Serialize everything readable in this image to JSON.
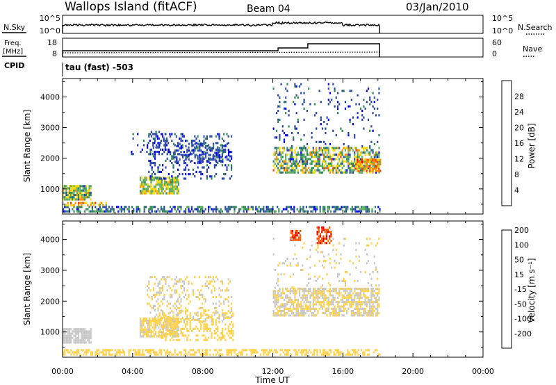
{
  "header": {
    "station": "Wallops Island (fitACF)",
    "beam": "Beam 04",
    "date": "03/Jan/2010"
  },
  "control_panels": {
    "nsky": {
      "label": "N.Sky",
      "ticks": [
        "10^5",
        "10^0"
      ],
      "right_ticks": [
        "10^5",
        "10^0"
      ],
      "right_label": "N.Search"
    },
    "freq": {
      "label_lines": [
        "Freq.",
        "[MHz]"
      ],
      "ticks": [
        "18",
        "8"
      ],
      "right_ticks": [
        "60",
        "0"
      ],
      "right_label": "Nave"
    },
    "cpid": {
      "label": "CPID",
      "value": "tau (fast) -503"
    }
  },
  "time_axis": {
    "label": "Time UT",
    "ticks": [
      "00:00",
      "04:00",
      "08:00",
      "12:00",
      "16:00",
      "20:00",
      "00:00"
    ]
  },
  "colors": {
    "power": [
      "#0000ff",
      "#2d4ba6",
      "#2e8b57",
      "#5fae5f",
      "#ffd700",
      "#ff8c00",
      "#ff3b00",
      "#ee0000"
    ],
    "velocity": [
      "#ee0000",
      "#ff5a00",
      "#ffa500",
      "#ffd24d",
      "#c8c8c8",
      "#7fd040",
      "#2e8b57",
      "#2050b0"
    ]
  },
  "chart_data": [
    {
      "type": "heatmap",
      "title": "",
      "xlabel": "",
      "ylabel": "Slant Range [km]",
      "xlim": [
        0,
        24
      ],
      "ylim": [
        180,
        4600
      ],
      "yticks": [
        "1000",
        "2000",
        "3000",
        "4000"
      ],
      "colorbar": {
        "label": "Power [dB]",
        "ticks": [
          "4",
          "8",
          "12",
          "16",
          "20",
          "24",
          "28"
        ],
        "range": [
          0,
          32
        ]
      },
      "data_end_hour": 18.1,
      "regions": [
        {
          "t0": 0.0,
          "t1": 1.6,
          "r0": 620,
          "r1": 1060,
          "value": 14,
          "spread": 7,
          "density": 0.85
        },
        {
          "t0": 0.0,
          "t1": 18.1,
          "r0": 230,
          "r1": 420,
          "value": 8,
          "spread": 6,
          "density": 0.55
        },
        {
          "t0": 0.0,
          "t1": 2.5,
          "r0": 430,
          "r1": 560,
          "value": 20,
          "spread": 6,
          "density": 0.5
        },
        {
          "t0": 4.4,
          "t1": 6.6,
          "r0": 820,
          "r1": 1400,
          "value": 15,
          "spread": 6,
          "density": 0.8
        },
        {
          "t0": 4.8,
          "t1": 9.6,
          "r0": 1300,
          "r1": 2800,
          "value": 6,
          "spread": 4,
          "density": 0.22
        },
        {
          "t0": 6.3,
          "t1": 9.5,
          "r0": 1850,
          "r1": 2450,
          "value": 6,
          "spread": 4,
          "density": 0.35
        },
        {
          "t0": 3.9,
          "t1": 6.1,
          "r0": 2100,
          "r1": 2850,
          "value": 5,
          "spread": 3,
          "density": 0.18
        },
        {
          "t0": 12.0,
          "t1": 18.1,
          "r0": 1500,
          "r1": 2300,
          "value": 14,
          "spread": 9,
          "density": 0.6
        },
        {
          "t0": 16.7,
          "t1": 18.1,
          "r0": 1550,
          "r1": 1950,
          "value": 22,
          "spread": 5,
          "density": 0.7
        },
        {
          "t0": 12.0,
          "t1": 18.1,
          "r0": 2350,
          "r1": 4400,
          "value": 6,
          "spread": 4,
          "density": 0.08
        }
      ]
    },
    {
      "type": "heatmap",
      "title": "",
      "xlabel": "Time UT",
      "ylabel": "Slant Range [km]",
      "xlim": [
        0,
        24
      ],
      "ylim": [
        180,
        4600
      ],
      "yticks": [
        "1000",
        "2000",
        "3000",
        "4000"
      ],
      "colorbar": {
        "label": "Velocity [m s⁻¹]",
        "ticks": [
          "-200",
          "-100",
          "-50",
          "-15",
          "15",
          "50",
          "100",
          "200"
        ],
        "range": [
          -250,
          250
        ]
      },
      "data_end_hour": 18.1,
      "regions": [
        {
          "t0": 0.0,
          "t1": 1.6,
          "r0": 620,
          "r1": 1060,
          "value": 35,
          "spread": 12,
          "density": 0.85
        },
        {
          "t0": 0.0,
          "t1": 18.1,
          "r0": 230,
          "r1": 420,
          "value": -35,
          "spread": 12,
          "density": 0.55
        },
        {
          "t0": 4.4,
          "t1": 6.6,
          "r0": 820,
          "r1": 1400,
          "value": -5,
          "spread": 25,
          "density": 0.8
        },
        {
          "t0": 5.5,
          "t1": 9.7,
          "r0": 700,
          "r1": 1650,
          "value": -35,
          "spread": 10,
          "density": 0.35
        },
        {
          "t0": 4.8,
          "t1": 9.6,
          "r0": 1300,
          "r1": 2800,
          "value": 0,
          "spread": 8,
          "density": 0.22
        },
        {
          "t0": 12.0,
          "t1": 18.1,
          "r0": 1500,
          "r1": 2400,
          "value": 0,
          "spread": 10,
          "density": 0.65
        },
        {
          "t0": 13.0,
          "t1": 13.6,
          "r0": 3950,
          "r1": 4300,
          "value": -180,
          "spread": 25,
          "density": 0.6
        },
        {
          "t0": 14.5,
          "t1": 15.3,
          "r0": 3850,
          "r1": 4400,
          "value": -180,
          "spread": 25,
          "density": 0.6
        },
        {
          "t0": 12.0,
          "t1": 18.1,
          "r0": 2400,
          "r1": 4000,
          "value": 0,
          "spread": 8,
          "density": 0.08
        }
      ]
    }
  ]
}
